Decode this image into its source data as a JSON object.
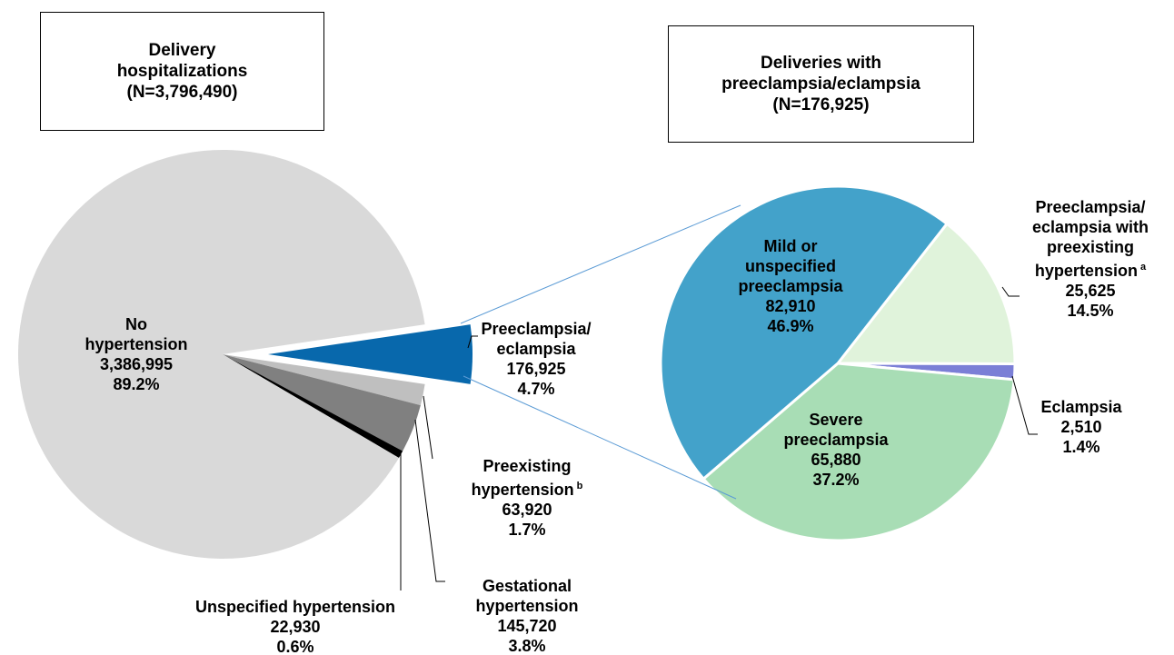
{
  "chart_data": [
    {
      "type": "pie",
      "title": "Delivery hospitalizations",
      "subtitle": "(N=3,796,490)",
      "categories": [
        "Preeclampsia/ eclampsia",
        "Preexisting hypertension",
        "Gestational hypertension",
        "Unspecified hypertension",
        "No hypertension"
      ],
      "values": [
        176925,
        63920,
        145720,
        22930,
        3386995
      ],
      "value_labels": [
        "176,925",
        "63,920",
        "145,720",
        "22,930",
        "3,386,995"
      ],
      "percent_labels": [
        "4.7%",
        "1.7%",
        "3.8%",
        "0.6%",
        "89.2%"
      ],
      "superscripts": [
        null,
        "b",
        null,
        null,
        null
      ],
      "colors": [
        "#0868ac",
        "#bfbfbf",
        "#808080",
        "#000000",
        "#d9d9d9"
      ],
      "explode": [
        true,
        false,
        false,
        false,
        false
      ]
    },
    {
      "type": "pie",
      "title": "Deliveries with preeclampsia/eclampsia",
      "subtitle": "(N=176,925)",
      "categories": [
        "Preeclampsia/ eclampsia with preexisting hypertension",
        "Eclampsia",
        "Severe preeclampsia",
        "Mild or unspecified preeclampsia"
      ],
      "values": [
        25625,
        2510,
        65880,
        82910
      ],
      "value_labels": [
        "25,625",
        "2,510",
        "65,880",
        "82,910"
      ],
      "percent_labels": [
        "14.5%",
        "1.4%",
        "37.2%",
        "46.9%"
      ],
      "superscripts": [
        "a",
        null,
        null,
        null
      ],
      "colors": [
        "#e0f3db",
        "#7b7fd6",
        "#a8ddb5",
        "#43a2ca"
      ],
      "explode": [
        false,
        false,
        false,
        false
      ]
    }
  ]
}
